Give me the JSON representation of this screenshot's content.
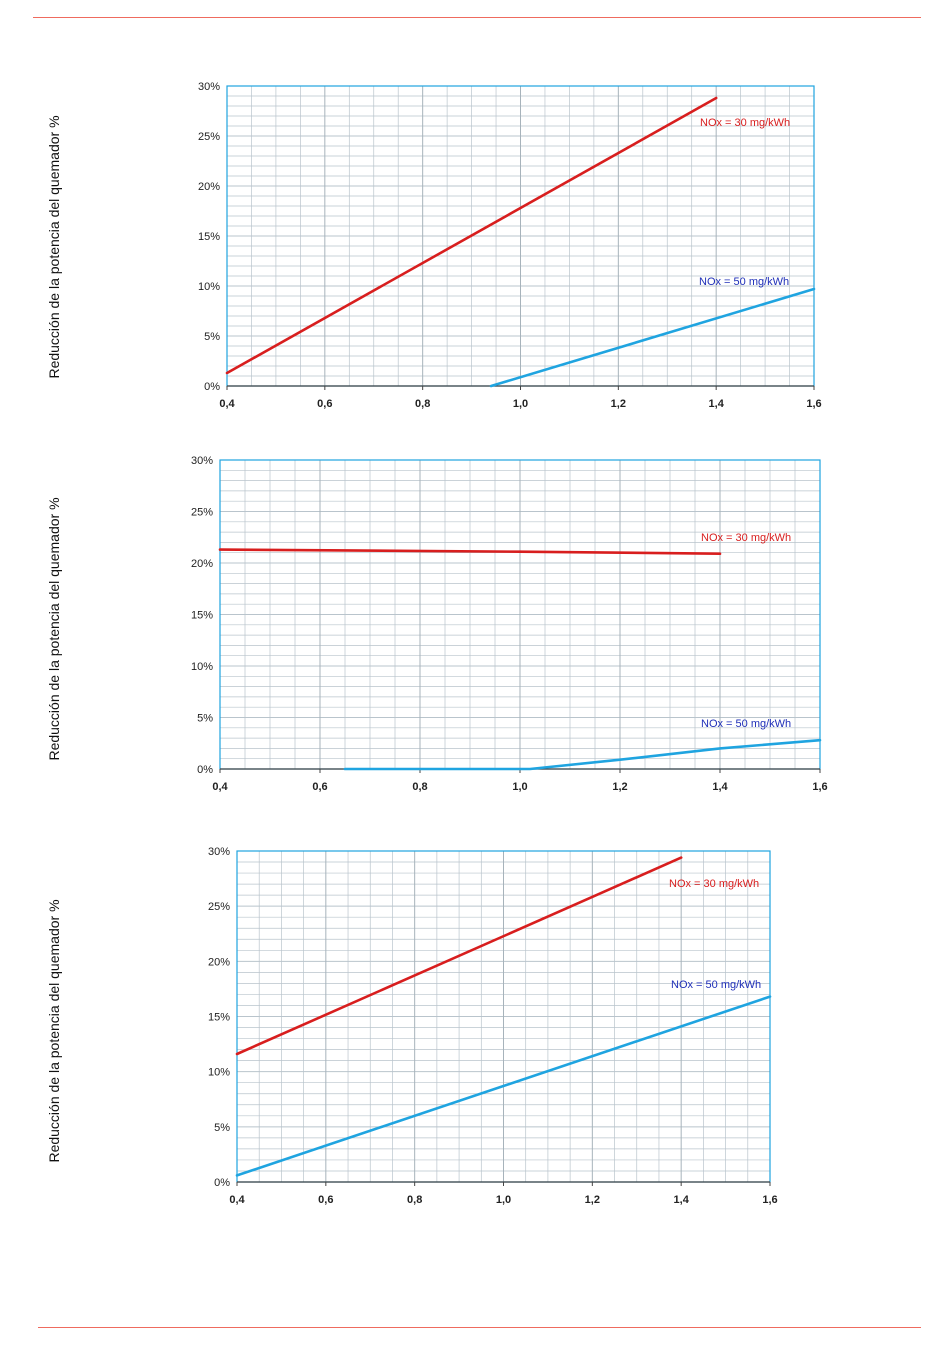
{
  "chart_data": [
    {
      "type": "line",
      "title": "",
      "xlabel": "",
      "ylabel": "Reducción de la potencia del quemador %",
      "xlim": [
        0.4,
        1.6
      ],
      "ylim": [
        0,
        30
      ],
      "x_ticks": [
        "0,4",
        "0,6",
        "0,8",
        "1,0",
        "1,2",
        "1,4",
        "1,6"
      ],
      "y_ticks": [
        "0%",
        "5%",
        "10%",
        "15%",
        "20%",
        "25%",
        "30%"
      ],
      "grid": true,
      "series": [
        {
          "name": "NOx = 30 mg/kWh",
          "color": "#d81e1e",
          "x": [
            0.4,
            1.4
          ],
          "y": [
            1.3,
            28.8
          ]
        },
        {
          "name": "NOx = 50 mg/kWh",
          "color": "#1fa4e0",
          "x": [
            0.94,
            1.6
          ],
          "y": [
            0,
            9.7
          ]
        }
      ]
    },
    {
      "type": "line",
      "title": "",
      "xlabel": "",
      "ylabel": "Reducción de la potencia del quemador %",
      "xlim": [
        0.4,
        1.6
      ],
      "ylim": [
        0,
        30
      ],
      "x_ticks": [
        "0,4",
        "0,6",
        "0,8",
        "1,0",
        "1,2",
        "1,4",
        "1,6"
      ],
      "y_ticks": [
        "0%",
        "5%",
        "10%",
        "15%",
        "20%",
        "25%",
        "30%"
      ],
      "grid": true,
      "series": [
        {
          "name": "NOx = 30 mg/kWh",
          "color": "#d81e1e",
          "x": [
            0.4,
            1.0,
            1.4
          ],
          "y": [
            21.3,
            21.1,
            20.9
          ]
        },
        {
          "name": "NOx = 50 mg/kWh",
          "color": "#1fa4e0",
          "x": [
            0.65,
            1.02,
            1.2,
            1.4,
            1.6
          ],
          "y": [
            0,
            0,
            0.9,
            2.0,
            2.8
          ]
        }
      ]
    },
    {
      "type": "line",
      "title": "",
      "xlabel": "",
      "ylabel": "Reducción de la potencia del quemador %",
      "xlim": [
        0.4,
        1.6
      ],
      "ylim": [
        0,
        30
      ],
      "x_ticks": [
        "0,4",
        "0,6",
        "0,8",
        "1,0",
        "1,2",
        "1,4",
        "1,6"
      ],
      "y_ticks": [
        "0%",
        "5%",
        "10%",
        "15%",
        "20%",
        "25%",
        "30%"
      ],
      "grid": true,
      "series": [
        {
          "name": "NOx = 30 mg/kWh",
          "color": "#d81e1e",
          "x": [
            0.4,
            1.4
          ],
          "y": [
            11.6,
            29.4
          ]
        },
        {
          "name": "NOx = 50 mg/kWh",
          "color": "#1fa4e0",
          "x": [
            0.4,
            1.6
          ],
          "y": [
            0.6,
            16.8
          ]
        }
      ]
    }
  ],
  "colors": {
    "page_rule": "#ef6b5e",
    "grid_line": "#b9c4cc",
    "axis_line": "#1fa4e0",
    "nox30_label": "#d81e1e",
    "nox50_label": "#1f2fb8"
  }
}
